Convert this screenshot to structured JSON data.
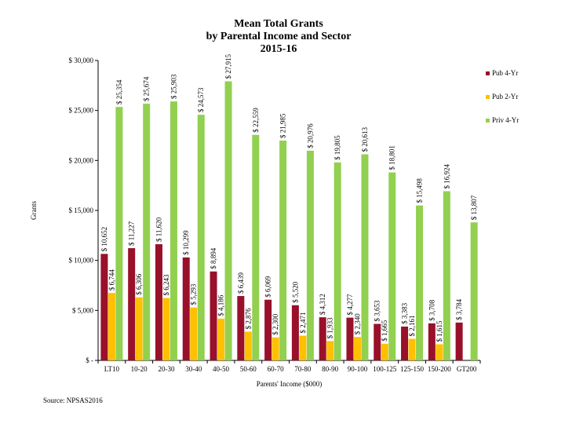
{
  "chart_data": {
    "type": "bar",
    "title_lines": [
      "Mean Total Grants",
      "by Parental Income and Sector",
      "2015-16"
    ],
    "xlabel": "Parents' Income ($000)",
    "ylabel": "Grants",
    "ylim": [
      0,
      30000
    ],
    "yticks": [
      0,
      5000,
      10000,
      15000,
      20000,
      25000,
      30000
    ],
    "ytick_labels": [
      "$ -",
      "$ 5,000",
      "$ 10,000",
      "$ 15,000",
      "$ 20,000",
      "$ 25,000",
      "$ 30,000"
    ],
    "categories": [
      "LT10",
      "10-20",
      "20-30",
      "30-40",
      "40-50",
      "50-60",
      "60-70",
      "70-80",
      "80-90",
      "90-100",
      "100-125",
      "125-150",
      "150-200",
      "GT200"
    ],
    "series": [
      {
        "name": "Pub 4-Yr",
        "color": "#99102a",
        "values": [
          10652,
          11227,
          11620,
          10299,
          8894,
          6439,
          6069,
          5520,
          4312,
          4277,
          3653,
          3383,
          3708,
          3784
        ],
        "labels": [
          "$ 10,652",
          "$ 11,227",
          "$ 11,620",
          "$ 10,299",
          "$ 8,894",
          "$ 6,439",
          "$ 6,069",
          "$ 5,520",
          "$ 4,312",
          "$ 4,277",
          "$ 3,653",
          "$ 3,383",
          "$ 3,708",
          "$ 3,784"
        ]
      },
      {
        "name": "Pub 2-Yr",
        "color": "#ffc000",
        "values": [
          6744,
          6306,
          6243,
          5293,
          4186,
          2876,
          2300,
          2471,
          1933,
          2340,
          1665,
          2161,
          1615,
          null
        ],
        "labels": [
          "$ 6,744",
          "$ 6,306",
          "$ 6,243",
          "$ 5,293",
          "$ 4,186",
          "$ 2,876",
          "$ 2,300",
          "$ 2,471",
          "$ 1,933",
          "$ 2,340",
          "$ 1,665",
          "$ 2,161",
          "$ 1,615",
          ""
        ]
      },
      {
        "name": "Priv 4-Yr",
        "color": "#92d050",
        "values": [
          25354,
          25674,
          25903,
          24573,
          27915,
          22559,
          21985,
          20976,
          19805,
          20613,
          18801,
          15498,
          16924,
          13807
        ],
        "labels": [
          "$ 25,354",
          "$ 25,674",
          "$ 25,903",
          "$ 24,573",
          "$ 27,915",
          "$ 22,559",
          "$ 21,985",
          "$ 20,976",
          "$ 19,805",
          "$ 20,613",
          "$ 18,801",
          "$ 15,498",
          "$ 16,924",
          "$ 13,807"
        ]
      }
    ],
    "legend": [
      "Pub 4-Yr",
      "Pub 2-Yr",
      "Priv 4-Yr"
    ],
    "legend_position": "right",
    "grid": false
  },
  "source_text": "Source: NPSAS2016"
}
